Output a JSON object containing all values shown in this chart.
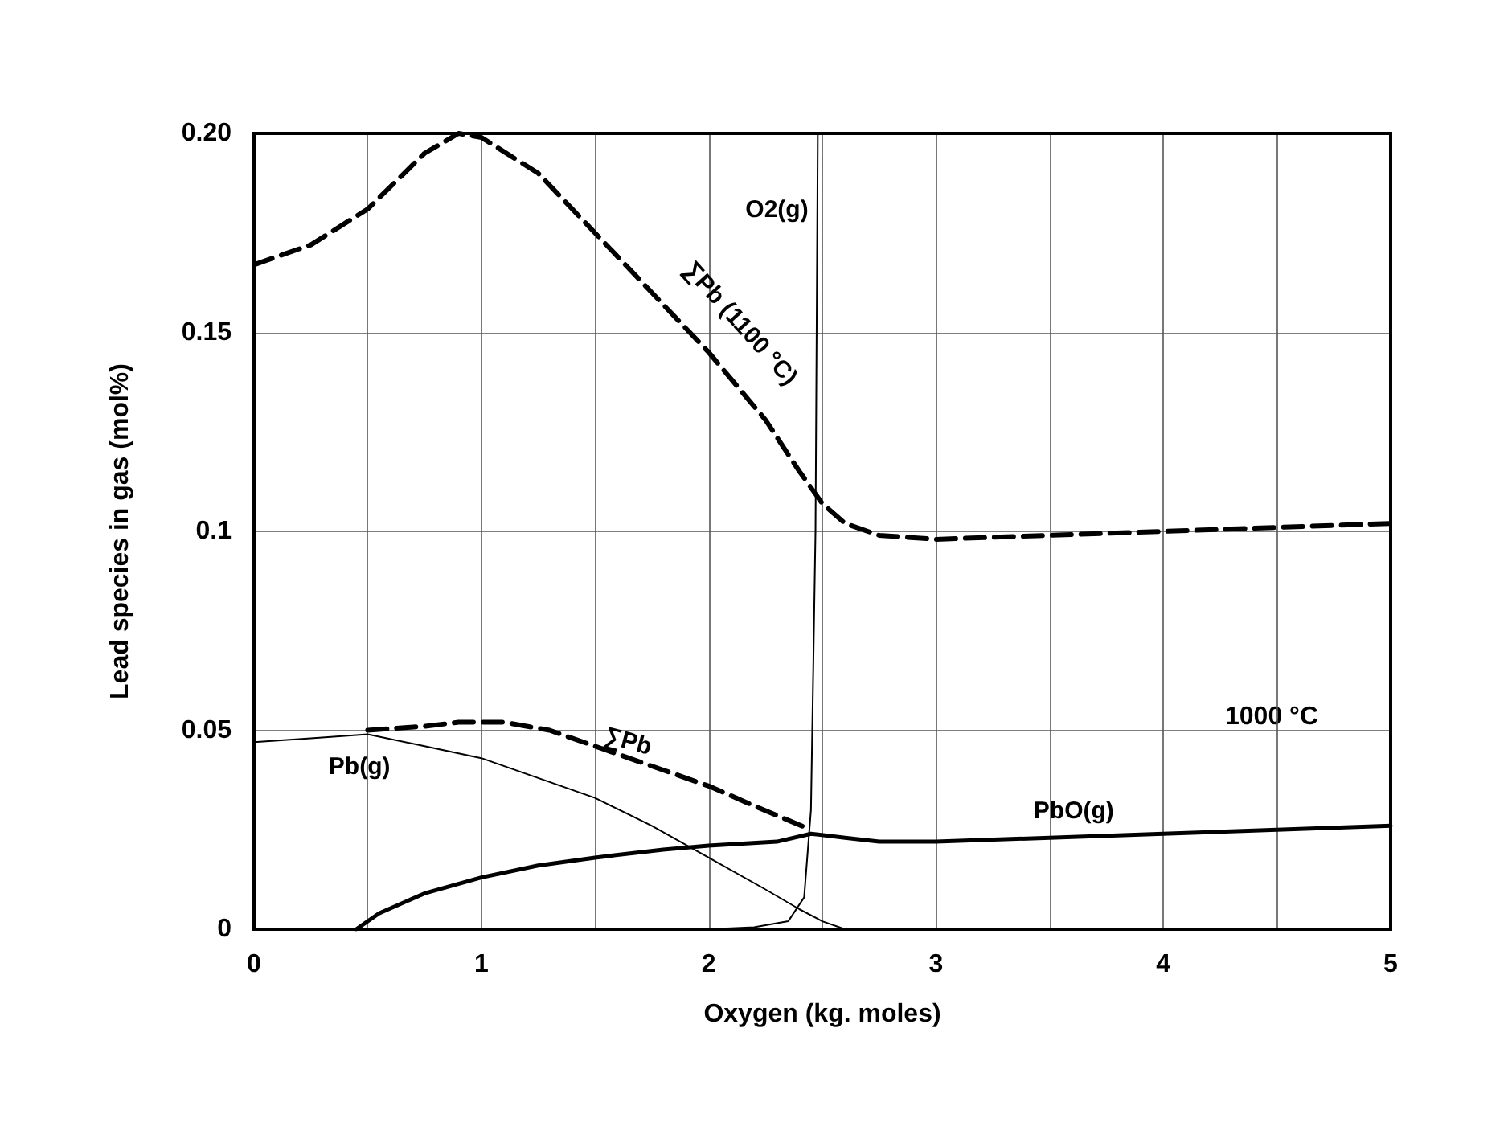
{
  "chart_data": {
    "type": "line",
    "xlabel": "Oxygen (kg. moles)",
    "ylabel": "Lead species in gas (mol%)",
    "xlim": [
      0,
      5
    ],
    "ylim": [
      0,
      0.2
    ],
    "xticks": [
      0,
      {
        "value": 0.5,
        "label": null
      },
      1,
      {
        "value": 1.5,
        "label": null
      },
      2,
      {
        "value": 2.5,
        "label": null
      },
      3,
      {
        "value": 3.5,
        "label": null
      },
      4,
      {
        "value": 4.5,
        "label": null
      },
      5
    ],
    "yticks": [
      0,
      0.05,
      0.1,
      0.15,
      {
        "value": 0.2,
        "label": "0.20"
      }
    ],
    "grid": true,
    "legend": false,
    "marker": "none",
    "annotations": [
      "1000 °C"
    ],
    "series": [
      {
        "name": "∑Pb (1100 °C)",
        "color": "#000000",
        "line_style": "dashed",
        "x": [
          0,
          0.25,
          0.5,
          0.75,
          0.9,
          1.0,
          1.25,
          1.5,
          1.75,
          2.0,
          2.25,
          2.4,
          2.5,
          2.6,
          2.75,
          3,
          3.5,
          4,
          4.5,
          5
        ],
        "values": [
          0.167,
          0.172,
          0.181,
          0.195,
          0.2,
          0.199,
          0.19,
          0.175,
          0.16,
          0.145,
          0.128,
          0.115,
          0.107,
          0.102,
          0.099,
          0.098,
          0.099,
          0.1,
          0.101,
          0.102
        ]
      },
      {
        "name": "∑Pb",
        "color": "#000000",
        "line_style": "dashed",
        "x": [
          0.5,
          0.75,
          0.9,
          1.1,
          1.3,
          1.5,
          1.8,
          2.0,
          2.2,
          2.45
        ],
        "values": [
          0.05,
          0.051,
          0.052,
          0.052,
          0.05,
          0.046,
          0.04,
          0.036,
          0.031,
          0.025
        ]
      },
      {
        "name": "Pb(g)",
        "color": "#000000",
        "line_style": "solid",
        "x": [
          0,
          0.25,
          0.5,
          0.75,
          1,
          1.25,
          1.5,
          1.75,
          2,
          2.25,
          2.4,
          2.5,
          2.6
        ],
        "values": [
          0.047,
          0.048,
          0.049,
          0.046,
          0.043,
          0.038,
          0.033,
          0.026,
          0.018,
          0.01,
          0.005,
          0.002,
          0
        ]
      },
      {
        "name": "PbO(g)",
        "color": "#000000",
        "line_style": "solid",
        "x": [
          0.45,
          0.55,
          0.75,
          1,
          1.25,
          1.5,
          1.8,
          2,
          2.3,
          2.45,
          2.6,
          2.75,
          3,
          3.5,
          4,
          4.5,
          5
        ],
        "values": [
          0,
          0.004,
          0.009,
          0.013,
          0.016,
          0.018,
          0.02,
          0.021,
          0.022,
          0.024,
          0.023,
          0.022,
          0.022,
          0.023,
          0.024,
          0.025,
          0.026
        ]
      },
      {
        "name": "O2(g)",
        "color": "#000000",
        "line_style": "solid",
        "x": [
          0,
          1,
          2,
          2.2,
          2.35,
          2.42,
          2.45,
          2.47,
          2.48
        ],
        "values": [
          0,
          0,
          0,
          0.0005,
          0.002,
          0.008,
          0.03,
          0.1,
          0.2
        ]
      }
    ]
  }
}
